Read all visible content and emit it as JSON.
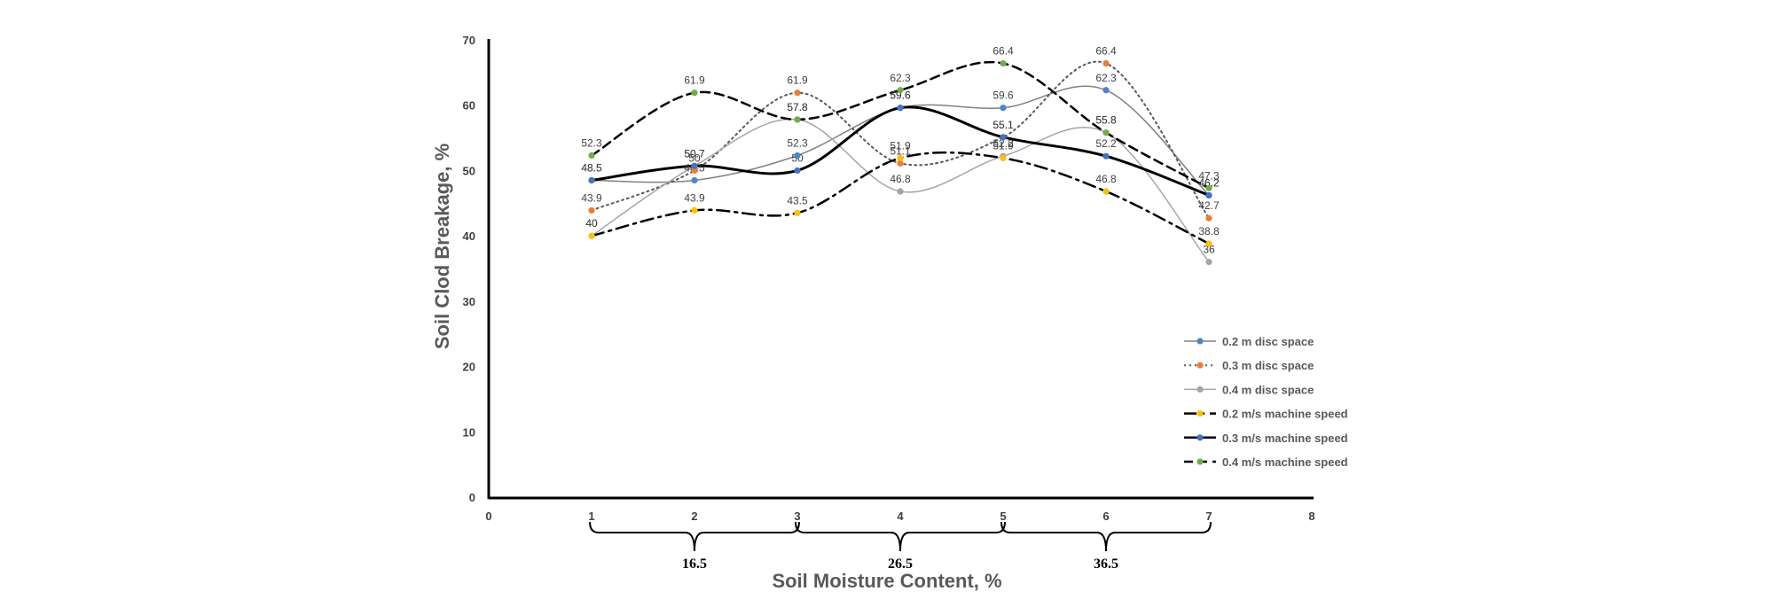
{
  "chart_data": {
    "type": "line",
    "title": "",
    "xlabel": "Soil Moisture Content, %",
    "ylabel": "Soil Clod Breakage, %",
    "xlim": [
      0,
      8
    ],
    "ylim": [
      0,
      70
    ],
    "xticks": [
      "0",
      "1",
      "2",
      "3",
      "4",
      "5",
      "6",
      "7",
      "8"
    ],
    "yticks": [
      "0",
      "10",
      "20",
      "30",
      "40",
      "50",
      "60",
      "70"
    ],
    "grid": false,
    "legend_position": "right",
    "moisture_groups": [
      "16.5",
      "26.5",
      "36.5"
    ],
    "x": [
      1,
      2,
      3,
      4,
      5,
      6,
      7
    ],
    "series": [
      {
        "name": "0.2 m disc space",
        "values": [
          48.5,
          48.5,
          52.3,
          59.6,
          59.6,
          62.3,
          46.2
        ],
        "labels": [
          "48.5",
          "48.5",
          "52.3",
          "59.6",
          "59.6",
          "62.3",
          "46.2"
        ],
        "style": "solid",
        "width": 1.5,
        "line_color": "#808080",
        "marker_color": "#4a86c8"
      },
      {
        "name": "0.3  m disc space",
        "values": [
          43.9,
          50,
          61.9,
          51.1,
          55.1,
          66.4,
          42.7
        ],
        "labels": [
          "43.9",
          "50",
          "61.9",
          "51.1",
          "55.1",
          "66.4",
          "42.7"
        ],
        "style": "dotted",
        "width": 2,
        "line_color": "#595959",
        "marker_color": "#ed7d31"
      },
      {
        "name": "0.4 m disc space",
        "values": [
          40,
          50.7,
          57.8,
          46.8,
          52.2,
          55.8,
          36
        ],
        "labels": [
          "40",
          "50.7",
          "57.8",
          "46.8",
          "52.2",
          "55.8",
          "36"
        ],
        "style": "solid",
        "width": 1.5,
        "line_color": "#a6a6a6",
        "marker_color": "#a5a5a5"
      },
      {
        "name": "0.2 m/s machine speed",
        "values": [
          40,
          43.9,
          43.5,
          51.9,
          51.9,
          46.8,
          38.8
        ],
        "labels": [
          "40",
          "43.9",
          "43.5",
          "51.9",
          "51.9",
          "46.8",
          "38.8"
        ],
        "style": "dashdot",
        "width": 2.5,
        "line_color": "#000000",
        "marker_color": "#ffc000"
      },
      {
        "name": "0.3 m/s machine speed",
        "values": [
          48.5,
          50.7,
          50,
          59.6,
          55.1,
          52.2,
          46.2
        ],
        "labels": [
          "48.5",
          "50.7",
          "50",
          "59.6",
          "55.1",
          "52.2",
          "46.2"
        ],
        "style": "solid",
        "width": 3,
        "line_color": "#000000",
        "marker_color": "#4472c4"
      },
      {
        "name": "0.4 m/s machine speed",
        "values": [
          52.3,
          61.9,
          57.8,
          62.3,
          66.4,
          55.8,
          47.3
        ],
        "labels": [
          "52.3",
          "61.9",
          "57.8",
          "62.3",
          "66.4",
          "55.8",
          "47.3"
        ],
        "style": "dashed",
        "width": 2.5,
        "line_color": "#000000",
        "marker_color": "#70ad47"
      }
    ]
  }
}
